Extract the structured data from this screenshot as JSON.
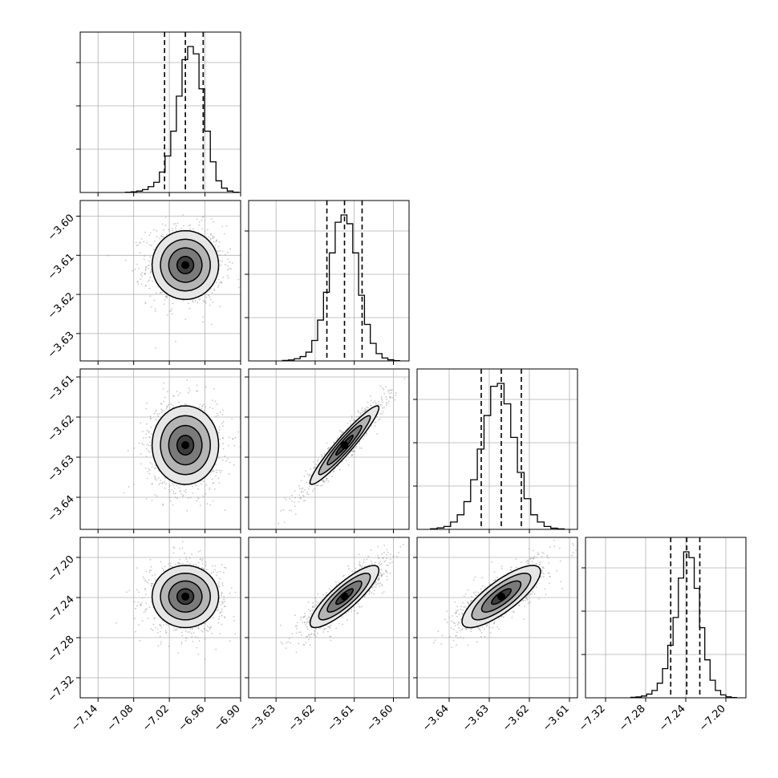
{
  "chart_data": {
    "type": "corner",
    "title": "",
    "grid": true,
    "colors": {
      "background": "#ffffff",
      "frame": "#000000",
      "grid": "#b0b0b0",
      "points": "#9a9a9a",
      "contour": "#000000",
      "hist": "#000000"
    },
    "parameters": [
      {
        "index": 0,
        "range": [
          -7.17,
          -6.9
        ],
        "ticks": [
          "−7.14",
          "−7.08",
          "−7.02",
          "−6.96",
          "−6.90"
        ],
        "tick_values": [
          -7.14,
          -7.08,
          -7.02,
          -6.96,
          -6.9
        ],
        "center": -6.993,
        "sigma": 0.028,
        "quantiles": [
          -7.028,
          -6.993,
          -6.963
        ]
      },
      {
        "index": 1,
        "range": [
          -3.637,
          -3.596
        ],
        "ticks": [
          "−3.60",
          "−3.61",
          "−3.62",
          "−3.63"
        ],
        "tick_values": [
          -3.6,
          -3.61,
          -3.62,
          -3.63
        ],
        "xticks": [
          "−3.63",
          "−3.62",
          "−3.61",
          "−3.60"
        ],
        "xtick_values": [
          -3.63,
          -3.62,
          -3.61,
          -3.6
        ],
        "center": -3.6125,
        "sigma": 0.0044,
        "quantiles": [
          -3.617,
          -3.6125,
          -3.608
        ]
      },
      {
        "index": 2,
        "range": [
          -3.648,
          -3.608
        ],
        "ticks": [
          "−3.61",
          "−3.62",
          "−3.63",
          "−3.64"
        ],
        "tick_values": [
          -3.61,
          -3.62,
          -3.63,
          -3.64
        ],
        "xticks": [
          "−3.64",
          "−3.63",
          "−3.62",
          "−3.61"
        ],
        "xtick_values": [
          -3.64,
          -3.63,
          -3.62,
          -3.61
        ],
        "center": -3.627,
        "sigma": 0.0049,
        "quantiles": [
          -3.632,
          -3.627,
          -3.622
        ]
      },
      {
        "index": 3,
        "range": [
          -7.34,
          -7.18
        ],
        "ticks": [
          "−7.20",
          "−7.24",
          "−7.28",
          "−7.32"
        ],
        "tick_values": [
          -7.2,
          -7.24,
          -7.28,
          -7.32
        ],
        "xticks": [
          "−7.32",
          "−7.28",
          "−7.24",
          "−7.20"
        ],
        "xtick_values": [
          -7.32,
          -7.28,
          -7.24,
          -7.2
        ],
        "center": -7.239,
        "sigma": 0.0155,
        "quantiles": [
          -7.255,
          -7.239,
          -7.226
        ]
      }
    ],
    "hist_counts": [
      [
        0.002,
        0.005,
        0.01,
        0.02,
        0.04,
        0.07,
        0.14,
        0.25,
        0.42,
        0.66,
        0.91,
        1.0,
        0.95,
        0.71,
        0.42,
        0.21,
        0.08,
        0.03,
        0.01,
        0.002
      ],
      [
        0.003,
        0.007,
        0.015,
        0.03,
        0.06,
        0.14,
        0.28,
        0.47,
        0.74,
        0.95,
        1.0,
        0.94,
        0.74,
        0.45,
        0.25,
        0.12,
        0.05,
        0.02,
        0.008,
        0.002
      ],
      [
        0.004,
        0.01,
        0.02,
        0.05,
        0.1,
        0.19,
        0.34,
        0.55,
        0.78,
        0.98,
        1.0,
        0.86,
        0.63,
        0.39,
        0.21,
        0.1,
        0.05,
        0.02,
        0.008,
        0.003
      ],
      [
        0.003,
        0.006,
        0.012,
        0.025,
        0.05,
        0.1,
        0.2,
        0.36,
        0.55,
        0.82,
        1.0,
        0.96,
        0.75,
        0.48,
        0.26,
        0.12,
        0.05,
        0.02,
        0.007,
        0.002
      ]
    ],
    "correlations": [
      [
        1,
        0,
        0,
        0
      ],
      [
        0,
        1,
        0.95,
        0.85
      ],
      [
        0,
        0.95,
        1,
        0.8
      ],
      [
        0,
        0.85,
        0.8,
        1
      ]
    ],
    "contour_levels_sigma": [
      0.5,
      1,
      1.5,
      2
    ]
  }
}
